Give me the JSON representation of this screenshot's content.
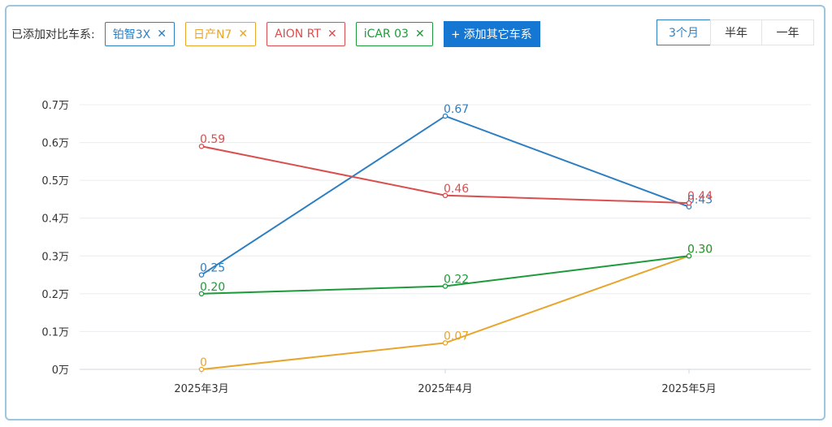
{
  "toolbar": {
    "label": "已添加对比车系:",
    "chips": [
      {
        "name": "铂智3X",
        "color": "#2e7fc1"
      },
      {
        "name": "日产N7",
        "color": "#e8a52c"
      },
      {
        "name": "AION RT",
        "color": "#d94f4f"
      },
      {
        "name": "iCAR 03",
        "color": "#1d9a3a"
      }
    ],
    "remove_glyph": "✕",
    "add_button": {
      "plus": "+",
      "label": "添加其它车系"
    }
  },
  "range": {
    "options": [
      "3个月",
      "半年",
      "一年"
    ],
    "selected": "3个月"
  },
  "chart_data": {
    "type": "line",
    "title": "",
    "xlabel": "",
    "ylabel": "",
    "x": [
      "2025年3月",
      "2025年4月",
      "2025年5月"
    ],
    "yticks": [
      "0万",
      "0.1万",
      "0.2万",
      "0.3万",
      "0.4万",
      "0.5万",
      "0.6万",
      "0.7万"
    ],
    "ylim": [
      0,
      0.7
    ],
    "grid": true,
    "series": [
      {
        "name": "铂智3X",
        "color": "#2e7fc1",
        "values": [
          0.25,
          0.67,
          0.43
        ],
        "labels": [
          "0.25",
          "0.67",
          "0.43"
        ]
      },
      {
        "name": "日产N7",
        "color": "#e8a52c",
        "values": [
          0,
          0.07,
          0.3
        ],
        "labels": [
          "0",
          "0.07",
          "0.30"
        ]
      },
      {
        "name": "AION RT",
        "color": "#d94f4f",
        "values": [
          0.59,
          0.46,
          0.44
        ],
        "labels": [
          "0.59",
          "0.46",
          "0.44"
        ]
      },
      {
        "name": "iCAR 03",
        "color": "#1d9a3a",
        "values": [
          0.2,
          0.22,
          0.3
        ],
        "labels": [
          "0.20",
          "0.22",
          "0.30"
        ]
      }
    ]
  }
}
